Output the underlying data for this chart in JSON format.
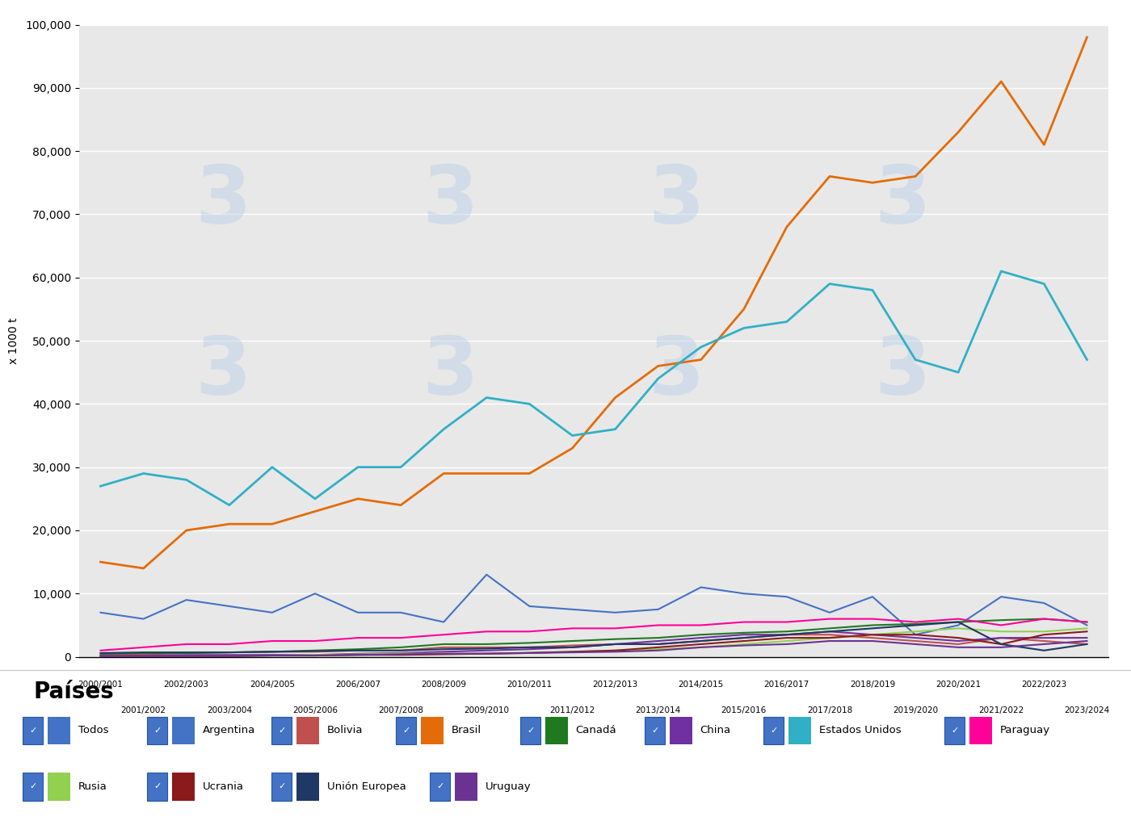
{
  "title": "",
  "ylabel": "x 1000 t",
  "ylim": [
    0,
    100000
  ],
  "yticks": [
    0,
    10000,
    20000,
    30000,
    40000,
    50000,
    60000,
    70000,
    80000,
    90000,
    100000
  ],
  "background_color": "#e8e8e8",
  "campaigns": [
    "2000/2001",
    "2001/2002",
    "2002/2003",
    "2003/2004",
    "2004/2005",
    "2005/2006",
    "2006/2007",
    "2007/2008",
    "2008/2009",
    "2009/2010",
    "2010/2011",
    "2011/2012",
    "2012/2013",
    "2013/2014",
    "2014/2015",
    "2015/2016",
    "2016/2017",
    "2017/2018",
    "2018/2019",
    "2019/2020",
    "2020/2021",
    "2021/2022",
    "2022/2023",
    "2023/2024"
  ],
  "series": {
    "Argentina": {
      "color": "#4472C4",
      "linewidth": 1.5,
      "values": [
        7000,
        6000,
        9000,
        8000,
        7000,
        10000,
        7000,
        7000,
        5500,
        13000,
        8000,
        7500,
        7000,
        7500,
        11000,
        10000,
        9500,
        7000,
        9500,
        3500,
        5000,
        9500,
        8500,
        5000
      ]
    },
    "Bolivia": {
      "color": "#C0504D",
      "linewidth": 1.5,
      "values": [
        400,
        400,
        600,
        700,
        800,
        800,
        1000,
        1000,
        1500,
        1500,
        1500,
        1800,
        2000,
        2000,
        2500,
        3000,
        3500,
        3500,
        3000,
        2500,
        2000,
        3000,
        2500,
        2000
      ]
    },
    "Brasil": {
      "color": "#E36C09",
      "linewidth": 2.0,
      "values": [
        15000,
        14000,
        20000,
        21000,
        21000,
        23000,
        25000,
        24000,
        29000,
        29000,
        29000,
        33000,
        41000,
        46000,
        47000,
        55000,
        68000,
        76000,
        75000,
        76000,
        83000,
        91000,
        81000,
        98000
      ]
    },
    "Canada": {
      "color": "#1F7A1F",
      "linewidth": 1.5,
      "values": [
        500,
        600,
        600,
        700,
        800,
        1000,
        1200,
        1500,
        2000,
        2000,
        2200,
        2500,
        2800,
        3000,
        3500,
        3800,
        4000,
        4500,
        5000,
        5200,
        5500,
        5800,
        6000,
        5500
      ]
    },
    "China": {
      "color": "#7030A0",
      "linewidth": 1.5,
      "values": [
        200,
        200,
        300,
        300,
        300,
        300,
        500,
        600,
        800,
        1000,
        1200,
        1500,
        2000,
        2500,
        3000,
        3500,
        3500,
        4000,
        3500,
        3000,
        2500,
        3000,
        3000,
        3000
      ]
    },
    "Estados Unidos": {
      "color": "#31B0C5",
      "linewidth": 2.0,
      "values": [
        27000,
        29000,
        28000,
        24000,
        30000,
        25000,
        30000,
        30000,
        36000,
        41000,
        40000,
        35000,
        36000,
        44000,
        49000,
        52000,
        53000,
        59000,
        58000,
        47000,
        45000,
        61000,
        59000,
        47000
      ]
    },
    "Paraguay": {
      "color": "#FF0099",
      "linewidth": 1.5,
      "values": [
        1000,
        1500,
        2000,
        2000,
        2500,
        2500,
        3000,
        3000,
        3500,
        4000,
        4000,
        4500,
        4500,
        5000,
        5000,
        5500,
        5500,
        6000,
        6000,
        5500,
        6000,
        5000,
        6000,
        5500
      ]
    },
    "Rusia": {
      "color": "#92D050",
      "linewidth": 1.5,
      "values": [
        100,
        100,
        100,
        100,
        200,
        300,
        400,
        500,
        500,
        500,
        700,
        800,
        1000,
        1200,
        1500,
        2000,
        2500,
        3000,
        3500,
        4000,
        4500,
        4000,
        4000,
        4500
      ]
    },
    "Ucrania": {
      "color": "#8B1A1A",
      "linewidth": 1.5,
      "values": [
        100,
        100,
        100,
        100,
        200,
        200,
        300,
        300,
        400,
        500,
        600,
        800,
        1000,
        1500,
        2000,
        2500,
        3000,
        3000,
        3500,
        3500,
        3000,
        2000,
        3500,
        4000
      ]
    },
    "Union Europea": {
      "color": "#1F3864",
      "linewidth": 1.5,
      "values": [
        600,
        700,
        700,
        700,
        800,
        900,
        1000,
        1000,
        1200,
        1300,
        1500,
        1500,
        2000,
        2000,
        2500,
        3000,
        3500,
        4000,
        4500,
        5000,
        5500,
        2000,
        1000,
        2000
      ]
    },
    "Uruguay": {
      "color": "#6B3391",
      "linewidth": 1.5,
      "values": [
        100,
        100,
        100,
        100,
        200,
        200,
        300,
        400,
        500,
        500,
        600,
        700,
        800,
        1000,
        1500,
        1800,
        2000,
        2500,
        2500,
        2000,
        1500,
        1500,
        2000,
        2500
      ]
    }
  },
  "legend_title": "Países",
  "legend_row1": [
    {
      "label": "Todos",
      "color": "#4472C4"
    },
    {
      "label": "Argentina",
      "color": "#4472C4"
    },
    {
      "label": "Bolivia",
      "color": "#C0504D"
    },
    {
      "label": "Brasil",
      "color": "#E36C09"
    },
    {
      "label": "Canadá",
      "color": "#1F7A1F"
    },
    {
      "label": "China",
      "color": "#7030A0"
    },
    {
      "label": "Estados Unidos",
      "color": "#31B0C5"
    },
    {
      "label": "Paraguay",
      "color": "#FF0099"
    }
  ],
  "legend_row2": [
    {
      "label": "Rusia",
      "color": "#92D050"
    },
    {
      "label": "Ucrania",
      "color": "#8B1A1A"
    },
    {
      "label": "Unión Europea",
      "color": "#1F3864"
    },
    {
      "label": "Uruguay",
      "color": "#6B3391"
    }
  ]
}
